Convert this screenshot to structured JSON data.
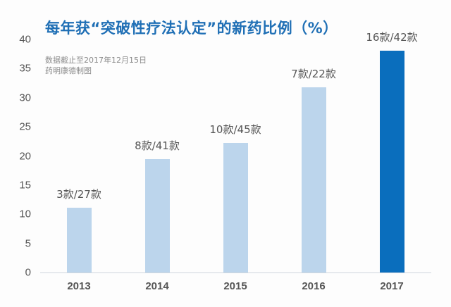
{
  "chart_data": {
    "type": "bar",
    "title": "每年获“突破性疗法认定”的新药比例（%）",
    "annotations": [
      "数据截止至2017年12月15日",
      "药明康德制图"
    ],
    "xlabel": "",
    "ylabel": "",
    "ylim": [
      0,
      40
    ],
    "yticks": [
      0,
      5,
      10,
      15,
      20,
      25,
      30,
      35,
      40
    ],
    "grid": false,
    "categories": [
      "2013",
      "2014",
      "2015",
      "2016",
      "2017"
    ],
    "values": [
      11.1,
      19.5,
      22.2,
      31.8,
      38.1
    ],
    "data_labels": [
      "3款/27款",
      "8款/41款",
      "10款/45款",
      "7款/22款",
      "16款/42款"
    ],
    "colors": [
      "#bcd5ec",
      "#bcd5ec",
      "#bcd5ec",
      "#bcd5ec",
      "#0a6ebd"
    ]
  }
}
